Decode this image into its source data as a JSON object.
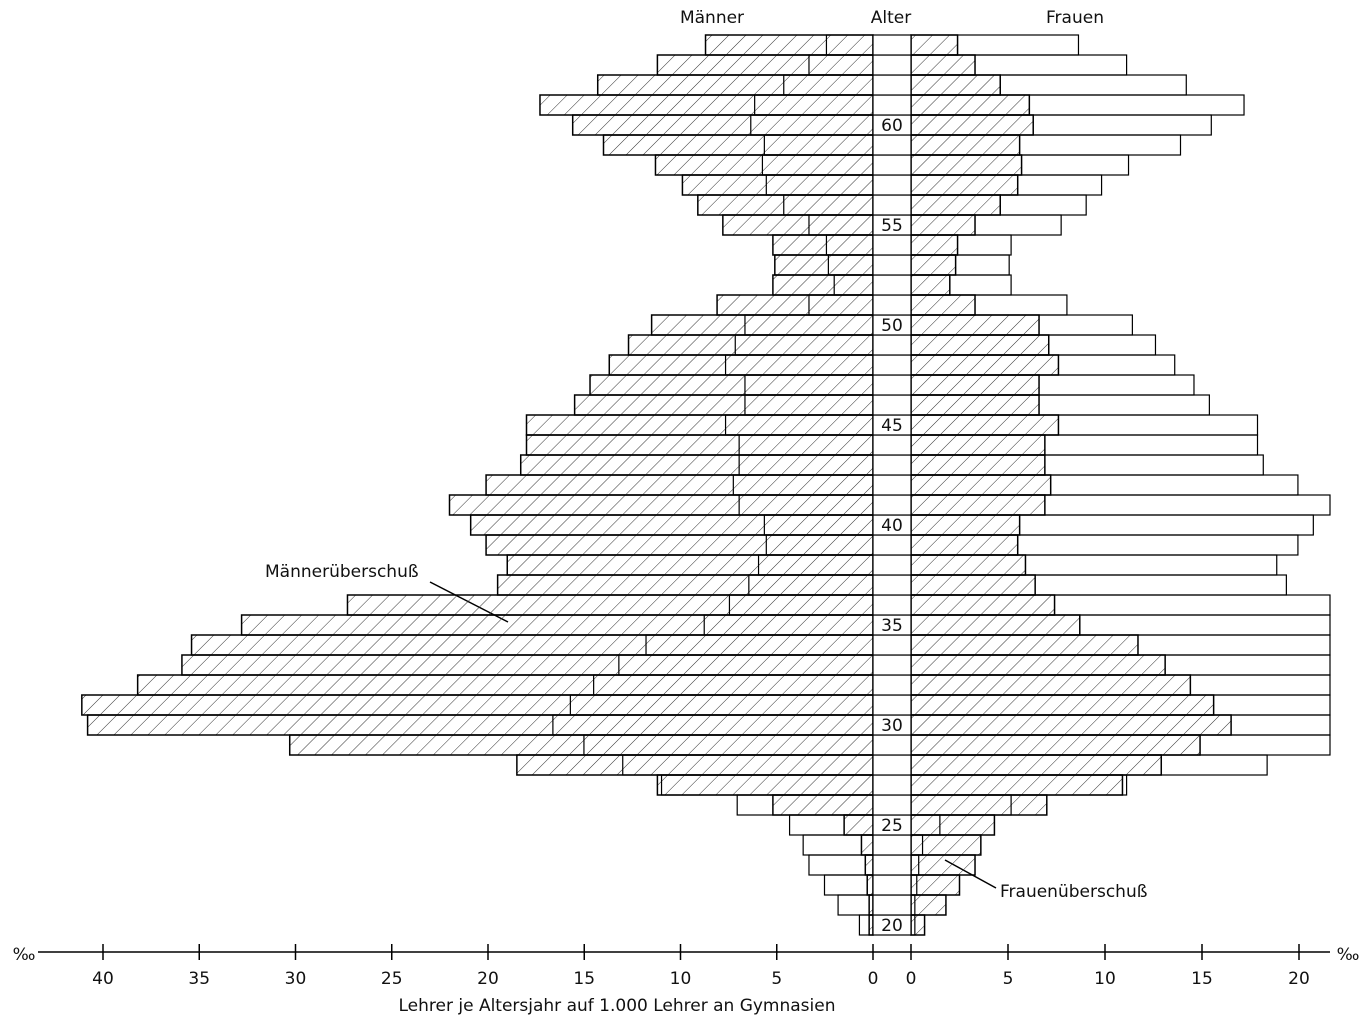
{
  "chart_data": {
    "type": "pyramid",
    "x_label": "Lehrer je Altersjahr auf 1.000 Lehrer an Gymnasien",
    "unit": "‰",
    "age_label": "Alter",
    "categories": [
      "20",
      null,
      null,
      null,
      null,
      "25",
      null,
      null,
      null,
      null,
      "30",
      null,
      null,
      null,
      null,
      "35",
      null,
      null,
      null,
      null,
      "40",
      null,
      null,
      null,
      null,
      "45",
      null,
      null,
      null,
      null,
      "50",
      null,
      null,
      null,
      null,
      "55",
      null,
      null,
      null,
      null,
      "60",
      null,
      null,
      null,
      null
    ],
    "series": [
      {
        "name": "Männer",
        "side": "left",
        "color": "#000000",
        "values": [
          0.2,
          0.2,
          0.3,
          0.4,
          0.6,
          1.5,
          5.2,
          11.2,
          18.5,
          30.3,
          40.8,
          41.1,
          38.2,
          35.9,
          35.4,
          32.8,
          27.3,
          19.5,
          19.0,
          20.1,
          20.9,
          22.0,
          20.1,
          18.3,
          18.0,
          18.0,
          15.5,
          14.7,
          13.7,
          12.7,
          11.5,
          8.1,
          5.2,
          5.1,
          5.2,
          7.8,
          9.1,
          9.9,
          11.3,
          14.0,
          15.6,
          17.3,
          14.3,
          11.2,
          8.7
        ]
      },
      {
        "name": "Frauen",
        "side": "right",
        "color": "#000000",
        "values": [
          0.7,
          1.8,
          2.5,
          3.3,
          3.6,
          4.3,
          7.0,
          10.9,
          12.9,
          14.9,
          16.5,
          15.6,
          14.4,
          13.1,
          11.7,
          8.7,
          7.4,
          6.4,
          5.9,
          5.5,
          5.6,
          6.9,
          7.2,
          6.9,
          6.9,
          7.6,
          6.6,
          6.6,
          7.6,
          7.1,
          6.6,
          3.3,
          2.0,
          2.3,
          2.4,
          3.3,
          4.6,
          5.5,
          5.7,
          5.6,
          6.3,
          6.1,
          4.6,
          3.3,
          2.4
        ]
      }
    ],
    "xlim": [
      0,
      40
    ],
    "xticks": [
      0,
      5,
      10,
      15,
      20,
      25,
      30,
      35,
      40
    ],
    "x2lim": [
      0,
      20
    ],
    "x2ticks": [
      0,
      5,
      10,
      15,
      20
    ],
    "annotations": [
      "Männerüberschuß",
      "Frauenüberschuß"
    ]
  }
}
